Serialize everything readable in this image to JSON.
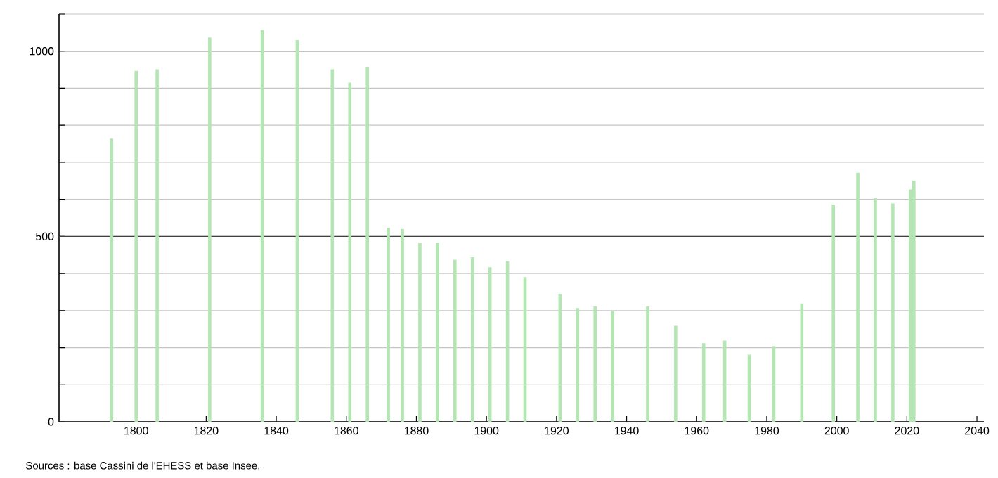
{
  "chart_data": {
    "type": "bar",
    "x": [
      1793,
      1800,
      1806,
      1821,
      1836,
      1846,
      1856,
      1861,
      1866,
      1872,
      1876,
      1881,
      1886,
      1891,
      1896,
      1901,
      1906,
      1911,
      1921,
      1926,
      1931,
      1936,
      1946,
      1954,
      1962,
      1968,
      1975,
      1982,
      1990,
      1999,
      2006,
      2011,
      2016,
      2021,
      2022
    ],
    "values": [
      764,
      947,
      951,
      1037,
      1057,
      1030,
      951,
      915,
      957,
      523,
      520,
      482,
      483,
      437,
      444,
      417,
      433,
      390,
      345,
      307,
      311,
      299,
      311,
      259,
      212,
      219,
      181,
      204,
      319,
      586,
      672,
      603,
      589,
      627,
      650
    ],
    "color": "#b3e6b3",
    "xlim": [
      1778,
      2042
    ],
    "xticks": [
      1800,
      1820,
      1840,
      1860,
      1880,
      1900,
      1920,
      1940,
      1960,
      1980,
      2000,
      2020,
      2040
    ],
    "ylim": [
      0,
      1100
    ],
    "yticks": [
      0,
      {
        "value": 100,
        "label": null
      },
      {
        "value": 200,
        "label": null
      },
      {
        "value": 300,
        "label": null
      },
      {
        "value": 400,
        "label": null
      },
      500,
      {
        "value": 600,
        "label": null
      },
      {
        "value": 700,
        "label": null
      },
      {
        "value": 800,
        "label": null
      },
      {
        "value": 900,
        "label": null
      },
      1000,
      {
        "value": 1100,
        "label": null
      }
    ],
    "grid": "y",
    "annotations": [
      "Sources : base Cassini de l'EHESS et base Insee."
    ]
  }
}
